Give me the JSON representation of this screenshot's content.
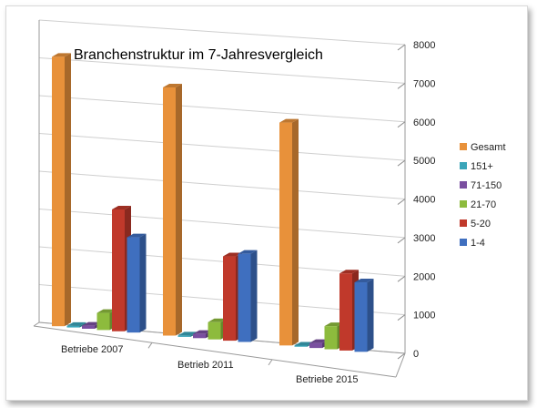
{
  "chart_data": {
    "type": "bar",
    "title": "Branchenstruktur im 7-Jahresvergleich",
    "categories": [
      "Betriebe 2007",
      "Betrieb 2011",
      "Betriebe 2015"
    ],
    "ylim": [
      0,
      8000
    ],
    "yticks": [
      "0",
      "1000",
      "2000",
      "3000",
      "4000",
      "5000",
      "6000",
      "7000",
      "8000"
    ],
    "grid": true,
    "legend_position": "right",
    "series": [
      {
        "name": "Gesamt",
        "color": "#e8913a",
        "values": [
          7100,
          6500,
          5800
        ]
      },
      {
        "name": "151+",
        "color": "#3aa5b9",
        "values": [
          40,
          35,
          30
        ]
      },
      {
        "name": "71-150",
        "color": "#7a4fa0",
        "values": [
          80,
          110,
          130
        ]
      },
      {
        "name": "21-70",
        "color": "#8dbb3d",
        "values": [
          450,
          450,
          600
        ]
      },
      {
        "name": "5-20",
        "color": "#c0392b",
        "values": [
          3200,
          2200,
          2000
        ]
      },
      {
        "name": "1-4",
        "color": "#3f6fbf",
        "values": [
          2500,
          2300,
          1800
        ]
      }
    ]
  }
}
